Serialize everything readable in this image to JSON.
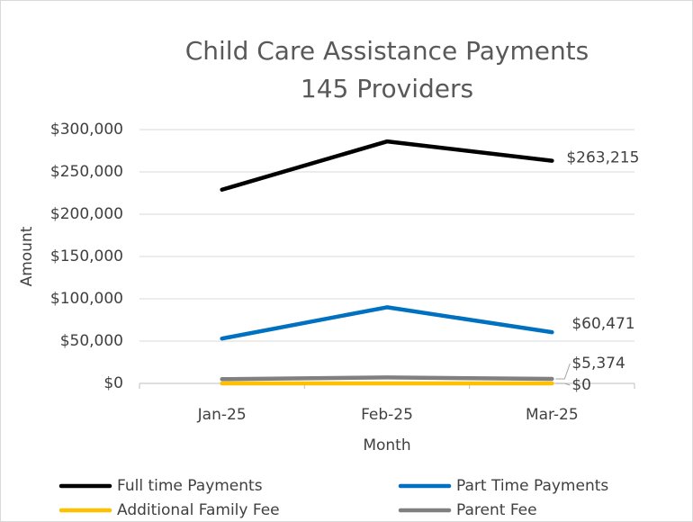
{
  "chart_data": {
    "type": "line",
    "title": "Child Care Assistance Payments",
    "subtitle": "145 Providers",
    "x_label": "Month",
    "y_label": "Amount",
    "categories": [
      "Jan-25",
      "Feb-25",
      "Mar-25"
    ],
    "series": [
      {
        "name": "Full time Payments",
        "color": "#000000",
        "values": [
          229000,
          286000,
          263215
        ],
        "value_labels": [
          null,
          null,
          "$263,215"
        ]
      },
      {
        "name": "Part Time Payments",
        "color": "#0070c0",
        "values": [
          53000,
          90000,
          60471
        ],
        "value_labels": [
          null,
          null,
          "$60,471"
        ]
      },
      {
        "name": "Additional Family Fee",
        "color": "#ffc000",
        "values": [
          0,
          0,
          0
        ],
        "value_labels": [
          null,
          null,
          "$0"
        ]
      },
      {
        "name": "Parent Fee",
        "color": "#808080",
        "values": [
          5000,
          7000,
          5374
        ],
        "value_labels": [
          null,
          null,
          "$5,374"
        ]
      }
    ],
    "ylim": [
      0,
      300000
    ],
    "yticks": [
      {
        "value": 0,
        "label": "$0"
      },
      {
        "value": 50000,
        "label": "$50,000"
      },
      {
        "value": 100000,
        "label": "$100,000"
      },
      {
        "value": 150000,
        "label": "$150,000"
      },
      {
        "value": 200000,
        "label": "$200,000"
      },
      {
        "value": 250000,
        "label": "$250,000"
      },
      {
        "value": 300000,
        "label": "$300,000"
      }
    ],
    "grid": true,
    "legend": "bottom"
  }
}
